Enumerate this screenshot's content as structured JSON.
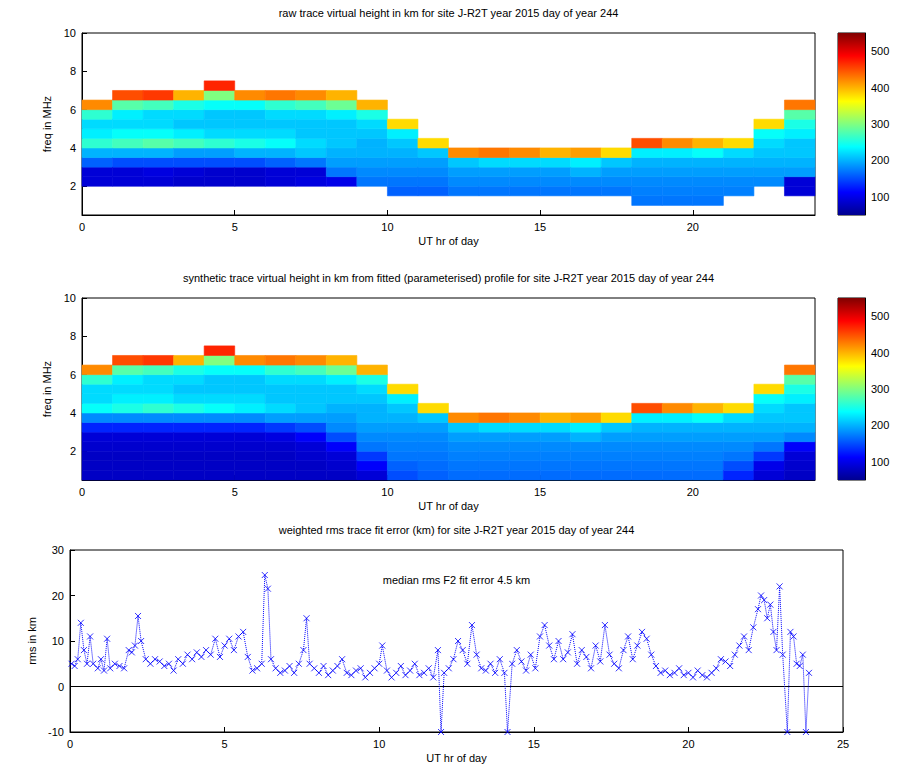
{
  "chart_data": [
    {
      "type": "heatmap",
      "title": "raw trace virtual height in km for site J-R2T year 2015 day of year 244",
      "x_label": "UT hr of day",
      "y_label": "freq in MHz",
      "xlim": [
        0,
        24
      ],
      "xticks": [
        0,
        5,
        10,
        15,
        20
      ],
      "ylim": [
        0.5,
        10
      ],
      "yticks": [
        2,
        4,
        6,
        8,
        10
      ],
      "colorbar": {
        "range": [
          50,
          550
        ],
        "ticks": [
          100,
          200,
          300,
          400,
          500
        ]
      },
      "x_edges": [
        0,
        1,
        2,
        3,
        4,
        5,
        6,
        7,
        8,
        9,
        10,
        11,
        12,
        13,
        14,
        15,
        16,
        17,
        18,
        19,
        20,
        21,
        22,
        23,
        24
      ],
      "y_edges": [
        0.5,
        1,
        1.5,
        2,
        2.5,
        3,
        3.5,
        4,
        4.5,
        5,
        5.5,
        6,
        6.5,
        7,
        7.5
      ],
      "cells": [
        [
          null,
          null,
          null,
          90,
          90,
          160,
          200,
          260,
          230,
          220,
          260,
          420,
          null,
          null
        ],
        [
          null,
          null,
          null,
          90,
          90,
          150,
          200,
          270,
          240,
          220,
          230,
          280,
          450,
          null
        ],
        [
          null,
          null,
          null,
          90,
          95,
          150,
          200,
          280,
          240,
          220,
          220,
          270,
          460,
          null
        ],
        [
          null,
          null,
          null,
          85,
          90,
          150,
          190,
          270,
          230,
          210,
          220,
          250,
          400,
          null
        ],
        [
          null,
          null,
          null,
          85,
          85,
          150,
          190,
          260,
          220,
          210,
          210,
          240,
          300,
          470
        ],
        [
          null,
          null,
          null,
          85,
          85,
          150,
          200,
          250,
          220,
          210,
          210,
          240,
          420,
          null
        ],
        [
          null,
          null,
          null,
          90,
          90,
          160,
          200,
          240,
          220,
          210,
          220,
          260,
          430,
          null
        ],
        [
          null,
          null,
          null,
          95,
          90,
          170,
          210,
          220,
          210,
          210,
          220,
          270,
          420,
          null
        ],
        [
          null,
          null,
          null,
          100,
          170,
          190,
          200,
          210,
          210,
          210,
          230,
          290,
          400,
          null
        ],
        [
          null,
          null,
          null,
          170,
          180,
          190,
          200,
          200,
          210,
          220,
          250,
          400,
          null,
          null
        ],
        [
          null,
          null,
          160,
          170,
          180,
          190,
          200,
          210,
          230,
          380,
          null,
          null,
          null,
          null
        ],
        [
          null,
          null,
          160,
          170,
          180,
          190,
          210,
          380,
          null,
          null,
          null,
          null,
          null,
          null
        ],
        [
          null,
          null,
          170,
          180,
          190,
          210,
          420,
          null,
          null,
          null,
          null,
          null,
          null,
          null
        ],
        [
          null,
          null,
          170,
          180,
          190,
          220,
          430,
          null,
          null,
          null,
          null,
          null,
          null,
          null
        ],
        [
          null,
          null,
          170,
          180,
          190,
          220,
          420,
          null,
          null,
          null,
          null,
          null,
          null,
          null
        ],
        [
          null,
          null,
          170,
          180,
          190,
          220,
          400,
          null,
          null,
          null,
          null,
          null,
          null,
          null
        ],
        [
          null,
          null,
          170,
          180,
          200,
          230,
          410,
          null,
          null,
          null,
          null,
          null,
          null,
          null
        ],
        [
          null,
          null,
          170,
          180,
          190,
          210,
          380,
          null,
          null,
          null,
          null,
          null,
          null,
          null
        ],
        [
          null,
          170,
          175,
          180,
          190,
          200,
          230,
          450,
          null,
          null,
          null,
          null,
          null,
          null
        ],
        [
          null,
          170,
          175,
          180,
          190,
          200,
          230,
          420,
          null,
          null,
          null,
          null,
          null,
          null
        ],
        [
          null,
          170,
          175,
          180,
          190,
          200,
          240,
          400,
          null,
          null,
          null,
          null,
          null,
          null
        ],
        [
          null,
          null,
          175,
          180,
          190,
          200,
          220,
          380,
          null,
          null,
          null,
          null,
          null,
          null
        ],
        [
          null,
          null,
          null,
          180,
          190,
          200,
          210,
          220,
          240,
          380,
          null,
          null,
          null,
          null
        ],
        [
          null,
          null,
          90,
          90,
          190,
          200,
          210,
          210,
          230,
          250,
          280,
          430,
          null,
          null
        ]
      ]
    },
    {
      "type": "heatmap",
      "title": "synthetic trace virtual height in km from fitted (parameterised) profile for site J-R2T year 2015 day of year 244",
      "x_label": "UT hr of day",
      "y_label": "freq in MHz",
      "xlim": [
        0,
        24
      ],
      "xticks": [
        0,
        5,
        10,
        15,
        20
      ],
      "ylim": [
        0.5,
        10
      ],
      "yticks": [
        2,
        4,
        6,
        8,
        10
      ],
      "colorbar": {
        "range": [
          50,
          550
        ],
        "ticks": [
          100,
          200,
          300,
          400,
          500
        ]
      },
      "x_edges": [
        0,
        1,
        2,
        3,
        4,
        5,
        6,
        7,
        8,
        9,
        10,
        11,
        12,
        13,
        14,
        15,
        16,
        17,
        18,
        19,
        20,
        21,
        22,
        23,
        24
      ],
      "y_edges": [
        0.5,
        1,
        1.5,
        2,
        2.5,
        3,
        3.5,
        4,
        4.5,
        5,
        5.5,
        6,
        6.5,
        7,
        7.5
      ],
      "cells": [
        [
          80,
          80,
          80,
          85,
          90,
          130,
          180,
          240,
          220,
          220,
          260,
          420,
          null,
          null
        ],
        [
          80,
          80,
          80,
          85,
          90,
          130,
          180,
          250,
          230,
          220,
          230,
          280,
          450,
          null
        ],
        [
          80,
          80,
          80,
          85,
          90,
          130,
          180,
          260,
          230,
          220,
          220,
          270,
          460,
          null
        ],
        [
          80,
          80,
          80,
          85,
          90,
          130,
          180,
          250,
          220,
          210,
          220,
          250,
          400,
          null
        ],
        [
          80,
          80,
          80,
          85,
          90,
          130,
          180,
          240,
          220,
          210,
          210,
          240,
          300,
          470
        ],
        [
          80,
          80,
          80,
          85,
          90,
          130,
          180,
          230,
          220,
          210,
          210,
          240,
          420,
          null
        ],
        [
          80,
          80,
          80,
          85,
          95,
          140,
          190,
          220,
          210,
          210,
          220,
          260,
          430,
          null
        ],
        [
          80,
          80,
          85,
          90,
          110,
          150,
          190,
          210,
          210,
          210,
          220,
          270,
          420,
          null
        ],
        [
          80,
          85,
          90,
          110,
          150,
          180,
          190,
          200,
          210,
          210,
          230,
          290,
          400,
          null
        ],
        [
          90,
          110,
          140,
          170,
          180,
          190,
          200,
          200,
          210,
          220,
          250,
          400,
          null,
          null
        ],
        [
          150,
          160,
          170,
          175,
          180,
          190,
          200,
          210,
          230,
          380,
          null,
          null,
          null,
          null
        ],
        [
          160,
          165,
          170,
          175,
          180,
          190,
          210,
          380,
          null,
          null,
          null,
          null,
          null,
          null
        ],
        [
          165,
          170,
          175,
          180,
          190,
          210,
          420,
          null,
          null,
          null,
          null,
          null,
          null,
          null
        ],
        [
          165,
          170,
          175,
          180,
          190,
          220,
          430,
          null,
          null,
          null,
          null,
          null,
          null,
          null
        ],
        [
          165,
          170,
          175,
          180,
          190,
          220,
          420,
          null,
          null,
          null,
          null,
          null,
          null,
          null
        ],
        [
          165,
          170,
          175,
          180,
          190,
          220,
          400,
          null,
          null,
          null,
          null,
          null,
          null,
          null
        ],
        [
          165,
          170,
          175,
          180,
          200,
          230,
          410,
          null,
          null,
          null,
          null,
          null,
          null,
          null
        ],
        [
          165,
          170,
          175,
          180,
          190,
          210,
          380,
          null,
          null,
          null,
          null,
          null,
          null,
          null
        ],
        [
          165,
          170,
          175,
          180,
          190,
          200,
          230,
          450,
          null,
          null,
          null,
          null,
          null,
          null
        ],
        [
          165,
          170,
          175,
          180,
          190,
          200,
          230,
          420,
          null,
          null,
          null,
          null,
          null,
          null
        ],
        [
          165,
          170,
          175,
          180,
          190,
          200,
          240,
          400,
          null,
          null,
          null,
          null,
          null,
          null
        ],
        [
          130,
          150,
          170,
          180,
          190,
          200,
          220,
          380,
          null,
          null,
          null,
          null,
          null,
          null
        ],
        [
          90,
          100,
          140,
          170,
          190,
          200,
          210,
          220,
          240,
          380,
          null,
          null,
          null,
          null
        ],
        [
          80,
          85,
          90,
          110,
          180,
          200,
          210,
          210,
          230,
          250,
          280,
          430,
          null,
          null
        ]
      ]
    },
    {
      "type": "scatter",
      "title": "weighted rms trace fit error (km) for site J-R2T year 2015 day of year 244",
      "x_label": "UT hr of day",
      "y_label": "rms in km",
      "annotation": "median rms F2 fit error 4.5 km",
      "xlim": [
        0,
        25
      ],
      "xticks": [
        0,
        5,
        10,
        15,
        20,
        25
      ],
      "ylim": [
        -10,
        30
      ],
      "yticks": [
        -10,
        0,
        10,
        20,
        30
      ],
      "hline": 0,
      "color": "#0000ff",
      "marker": "x",
      "line_style": "dotted",
      "x": [
        0.05,
        0.15,
        0.25,
        0.35,
        0.45,
        0.55,
        0.65,
        0.75,
        0.9,
        1,
        1.1,
        1.2,
        1.3,
        1.45,
        1.6,
        1.75,
        1.9,
        2,
        2.1,
        2.2,
        2.3,
        2.45,
        2.6,
        2.75,
        2.9,
        3.05,
        3.2,
        3.35,
        3.5,
        3.65,
        3.8,
        3.95,
        4.1,
        4.25,
        4.4,
        4.55,
        4.7,
        4.85,
        5,
        5.15,
        5.3,
        5.45,
        5.6,
        5.75,
        5.9,
        6.05,
        6.2,
        6.3,
        6.4,
        6.5,
        6.65,
        6.8,
        6.95,
        7.1,
        7.25,
        7.4,
        7.55,
        7.65,
        7.75,
        7.9,
        8.05,
        8.2,
        8.35,
        8.5,
        8.65,
        8.8,
        8.95,
        9.1,
        9.25,
        9.4,
        9.55,
        9.7,
        9.85,
        10,
        10.1,
        10.25,
        10.4,
        10.55,
        10.7,
        10.85,
        11,
        11.15,
        11.3,
        11.45,
        11.6,
        11.75,
        11.9,
        12,
        12.1,
        12.25,
        12.4,
        12.55,
        12.7,
        12.85,
        13,
        13.15,
        13.3,
        13.45,
        13.6,
        13.75,
        13.9,
        14.05,
        14.15,
        14.3,
        14.45,
        14.6,
        14.75,
        14.9,
        15.05,
        15.2,
        15.35,
        15.5,
        15.65,
        15.8,
        15.95,
        16.1,
        16.25,
        16.4,
        16.55,
        16.7,
        16.85,
        17,
        17.15,
        17.3,
        17.45,
        17.6,
        17.75,
        17.9,
        18.05,
        18.2,
        18.35,
        18.5,
        18.65,
        18.8,
        18.95,
        19.1,
        19.25,
        19.4,
        19.55,
        19.7,
        19.85,
        20,
        20.15,
        20.3,
        20.45,
        20.6,
        20.75,
        20.9,
        21.05,
        21.2,
        21.35,
        21.5,
        21.65,
        21.8,
        21.95,
        22.1,
        22.25,
        22.35,
        22.45,
        22.55,
        22.65,
        22.75,
        22.85,
        22.95,
        23.05,
        23.2,
        23.3,
        23.4,
        23.5,
        23.6,
        23.7,
        23.8,
        23.9
      ],
      "values": [
        5,
        4.5,
        6,
        14,
        8,
        5,
        11,
        5,
        4,
        6,
        3.5,
        10.5,
        4,
        5,
        4.5,
        4,
        8,
        7.5,
        9,
        15.5,
        10,
        6,
        5,
        6,
        5.5,
        4.5,
        5,
        3.5,
        6,
        5,
        7,
        6,
        7.5,
        6.5,
        8,
        7,
        10.5,
        6.5,
        9,
        10.5,
        8,
        11,
        12,
        6.5,
        3.5,
        4,
        5,
        24.5,
        21.5,
        6,
        4,
        3,
        3.5,
        4.5,
        3,
        5,
        8,
        15,
        5,
        4,
        3,
        4.5,
        2.5,
        3.5,
        4.5,
        6,
        3,
        2.5,
        3.5,
        4,
        2,
        3,
        4,
        5,
        9,
        3.5,
        2,
        3,
        4.5,
        2.5,
        3.5,
        5,
        2.5,
        3,
        4,
        2,
        8,
        -10,
        3,
        4,
        6,
        10,
        8,
        5,
        13.5,
        7,
        4,
        3.5,
        5,
        3,
        6,
        3,
        -10,
        5,
        8,
        5.5,
        3.5,
        7,
        4,
        11,
        13.5,
        9,
        6,
        10,
        6,
        7.5,
        11.5,
        5,
        8,
        6.5,
        4,
        9,
        5.5,
        13.5,
        7,
        5,
        4,
        8,
        11,
        6,
        9,
        12,
        10.5,
        7,
        4.5,
        3,
        3.5,
        2.5,
        3,
        4,
        2.5,
        3,
        2,
        3.5,
        2.5,
        2,
        3,
        4,
        6,
        5.5,
        4.5,
        7,
        9,
        11,
        8,
        13,
        17,
        20,
        19,
        15,
        18,
        12,
        8,
        22,
        7,
        -10,
        12,
        11,
        5,
        4.5,
        7,
        -10,
        3
      ]
    }
  ]
}
